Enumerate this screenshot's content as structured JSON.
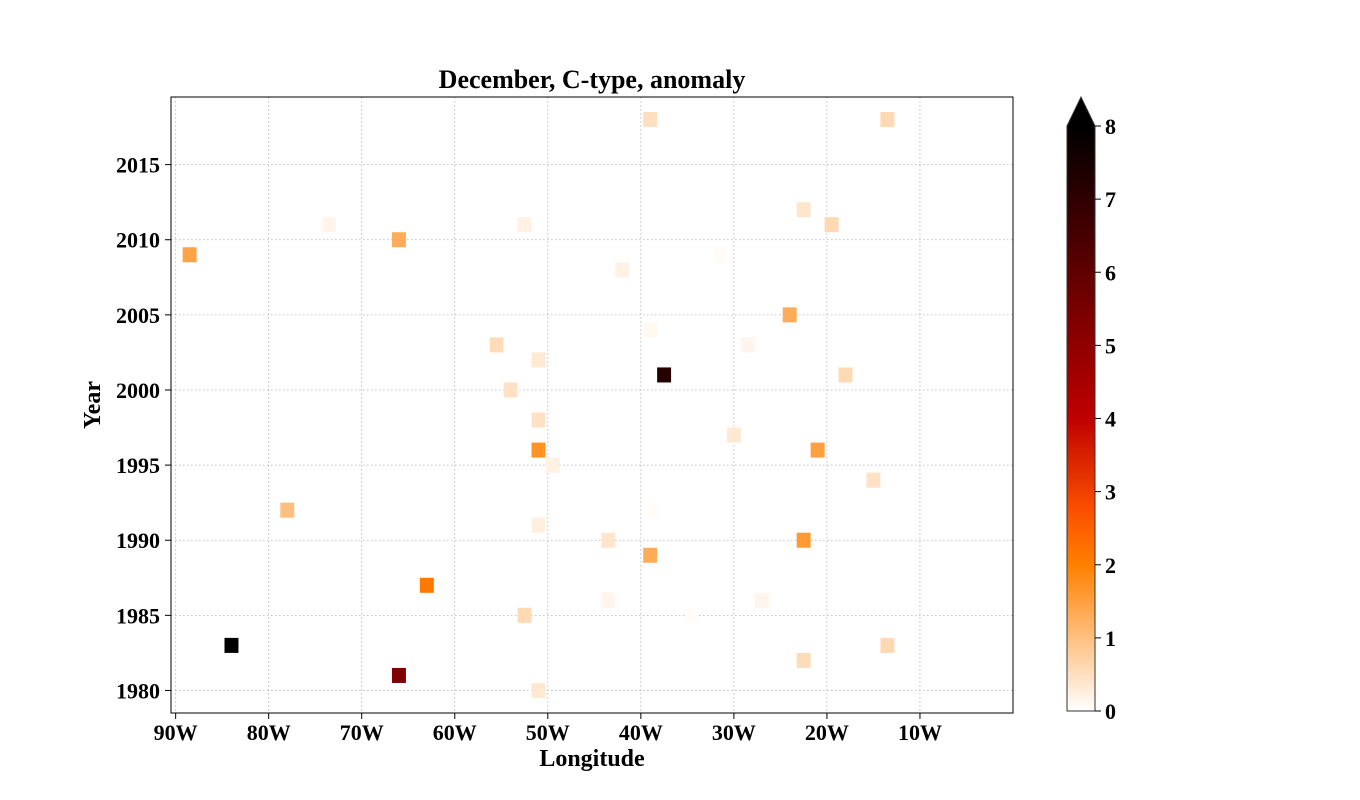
{
  "chart_data": {
    "type": "heatmap",
    "title": "December, C-type, anomaly",
    "xlabel": "Longitude",
    "ylabel": "Year",
    "xlim": [
      -90.5,
      0
    ],
    "ylim": [
      1978.5,
      2019.5
    ],
    "x_ticks": [
      -90,
      -80,
      -70,
      -60,
      -50,
      -40,
      -30,
      -20,
      -10
    ],
    "x_tick_labels": [
      "90W",
      "80W",
      "70W",
      "60W",
      "50W",
      "40W",
      "30W",
      "20W",
      "10W"
    ],
    "y_ticks": [
      1980,
      1985,
      1990,
      1995,
      2000,
      2005,
      2010,
      2015
    ],
    "y_tick_labels": [
      "1980",
      "1985",
      "1990",
      "1995",
      "2000",
      "2005",
      "2010",
      "2015"
    ],
    "grid": true,
    "colorbar": {
      "cmap": "gist_heat_r",
      "vmin": 0,
      "vmax": 8,
      "extend": "max",
      "ticks": [
        0,
        1,
        2,
        3,
        4,
        5,
        6,
        7,
        8
      ],
      "tick_labels": [
        "0",
        "1",
        "2",
        "3",
        "4",
        "5",
        "6",
        "7",
        "8"
      ]
    },
    "points": [
      {
        "lon": -39.0,
        "year": 2018,
        "value": 0.5
      },
      {
        "lon": -13.5,
        "year": 2018,
        "value": 0.6
      },
      {
        "lon": -22.5,
        "year": 2012,
        "value": 0.4
      },
      {
        "lon": -73.5,
        "year": 2011,
        "value": 0.15
      },
      {
        "lon": -52.5,
        "year": 2011,
        "value": 0.2
      },
      {
        "lon": -19.5,
        "year": 2011,
        "value": 0.6
      },
      {
        "lon": -66.0,
        "year": 2010,
        "value": 1.3
      },
      {
        "lon": -88.5,
        "year": 2009,
        "value": 1.45
      },
      {
        "lon": -31.5,
        "year": 2009,
        "value": 0.05
      },
      {
        "lon": -42.0,
        "year": 2008,
        "value": 0.2
      },
      {
        "lon": -24.0,
        "year": 2005,
        "value": 1.3
      },
      {
        "lon": -39.0,
        "year": 2004,
        "value": 0.1
      },
      {
        "lon": -55.5,
        "year": 2003,
        "value": 0.55
      },
      {
        "lon": -28.5,
        "year": 2003,
        "value": 0.15
      },
      {
        "lon": -51.0,
        "year": 2002,
        "value": 0.35
      },
      {
        "lon": -37.5,
        "year": 2001,
        "value": 7.2
      },
      {
        "lon": -18.0,
        "year": 2001,
        "value": 0.6
      },
      {
        "lon": -54.0,
        "year": 2000,
        "value": 0.45
      },
      {
        "lon": -51.0,
        "year": 1998,
        "value": 0.45
      },
      {
        "lon": -30.0,
        "year": 1997,
        "value": 0.35
      },
      {
        "lon": -51.0,
        "year": 1996,
        "value": 1.7
      },
      {
        "lon": -21.0,
        "year": 1996,
        "value": 1.5
      },
      {
        "lon": -49.5,
        "year": 1995,
        "value": 0.2
      },
      {
        "lon": -15.0,
        "year": 1994,
        "value": 0.45
      },
      {
        "lon": -78.0,
        "year": 1992,
        "value": 1.0
      },
      {
        "lon": -39.0,
        "year": 1992,
        "value": 0.05
      },
      {
        "lon": -51.0,
        "year": 1991,
        "value": 0.25
      },
      {
        "lon": -43.5,
        "year": 1990,
        "value": 0.4
      },
      {
        "lon": -22.5,
        "year": 1990,
        "value": 1.6
      },
      {
        "lon": -39.0,
        "year": 1989,
        "value": 1.3
      },
      {
        "lon": -63.0,
        "year": 1987,
        "value": 2.1
      },
      {
        "lon": -43.5,
        "year": 1986,
        "value": 0.15
      },
      {
        "lon": -27.0,
        "year": 1986,
        "value": 0.15
      },
      {
        "lon": -52.5,
        "year": 1985,
        "value": 0.6
      },
      {
        "lon": -34.5,
        "year": 1985,
        "value": 0.05
      },
      {
        "lon": -84.0,
        "year": 1983,
        "value": 8.5
      },
      {
        "lon": -13.5,
        "year": 1983,
        "value": 0.6
      },
      {
        "lon": -22.5,
        "year": 1982,
        "value": 0.55
      },
      {
        "lon": -66.0,
        "year": 1981,
        "value": 5.3
      },
      {
        "lon": -51.0,
        "year": 1980,
        "value": 0.35
      }
    ]
  }
}
